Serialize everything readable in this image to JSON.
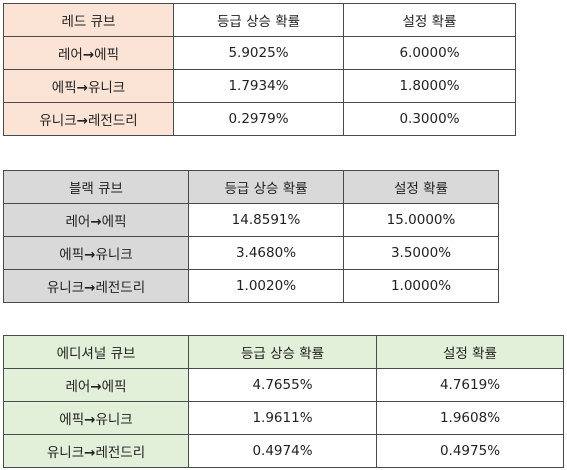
{
  "colors": {
    "red_cube_header": "#fbe3d6",
    "red_cube_label": "#fbe3d6",
    "black_cube_header": "#d9d9d9",
    "black_cube_label": "#d9d9d9",
    "additional_cube_header": "#e2efd9",
    "additional_cube_label": "#e2efd9",
    "value_cell": "#ffffff",
    "border": "#4a4a4a"
  },
  "tables": [
    {
      "name": "레드 큐브",
      "col_upgrade": "등급 상승 확률",
      "col_setting": "설정 확률",
      "rows": [
        {
          "from": "레어",
          "arrow": "→",
          "to": "에픽",
          "upgrade": "5.9025%",
          "setting": "6.0000%"
        },
        {
          "from": "에픽",
          "arrow": "→",
          "to": "유니크",
          "upgrade": "1.7934%",
          "setting": "1.8000%"
        },
        {
          "from": "유니크",
          "arrow": "→",
          "to": "레전드리",
          "upgrade": "0.2979%",
          "setting": "0.3000%"
        }
      ]
    },
    {
      "name": "블랙 큐브",
      "col_upgrade": "등급 상승 확률",
      "col_setting": "설정 확률",
      "rows": [
        {
          "from": "레어",
          "arrow": "→",
          "to": "에픽",
          "upgrade": "14.8591%",
          "setting": "15.0000%"
        },
        {
          "from": "에픽",
          "arrow": "→",
          "to": "유니크",
          "upgrade": "3.4680%",
          "setting": "3.5000%"
        },
        {
          "from": "유니크",
          "arrow": "→",
          "to": "레전드리",
          "upgrade": "1.0020%",
          "setting": "1.0000%"
        }
      ]
    },
    {
      "name": "에디셔널 큐브",
      "col_upgrade": "등급 상승 확률",
      "col_setting": "설정 확률",
      "rows": [
        {
          "from": "레어",
          "arrow": "→",
          "to": "에픽",
          "upgrade": "4.7655%",
          "setting": "4.7619%"
        },
        {
          "from": "에픽",
          "arrow": "→",
          "to": "유니크",
          "upgrade": "1.9611%",
          "setting": "1.9608%"
        },
        {
          "from": "유니크",
          "arrow": "→",
          "to": "레전드리",
          "upgrade": "0.4974%",
          "setting": "0.4975%"
        }
      ]
    }
  ]
}
